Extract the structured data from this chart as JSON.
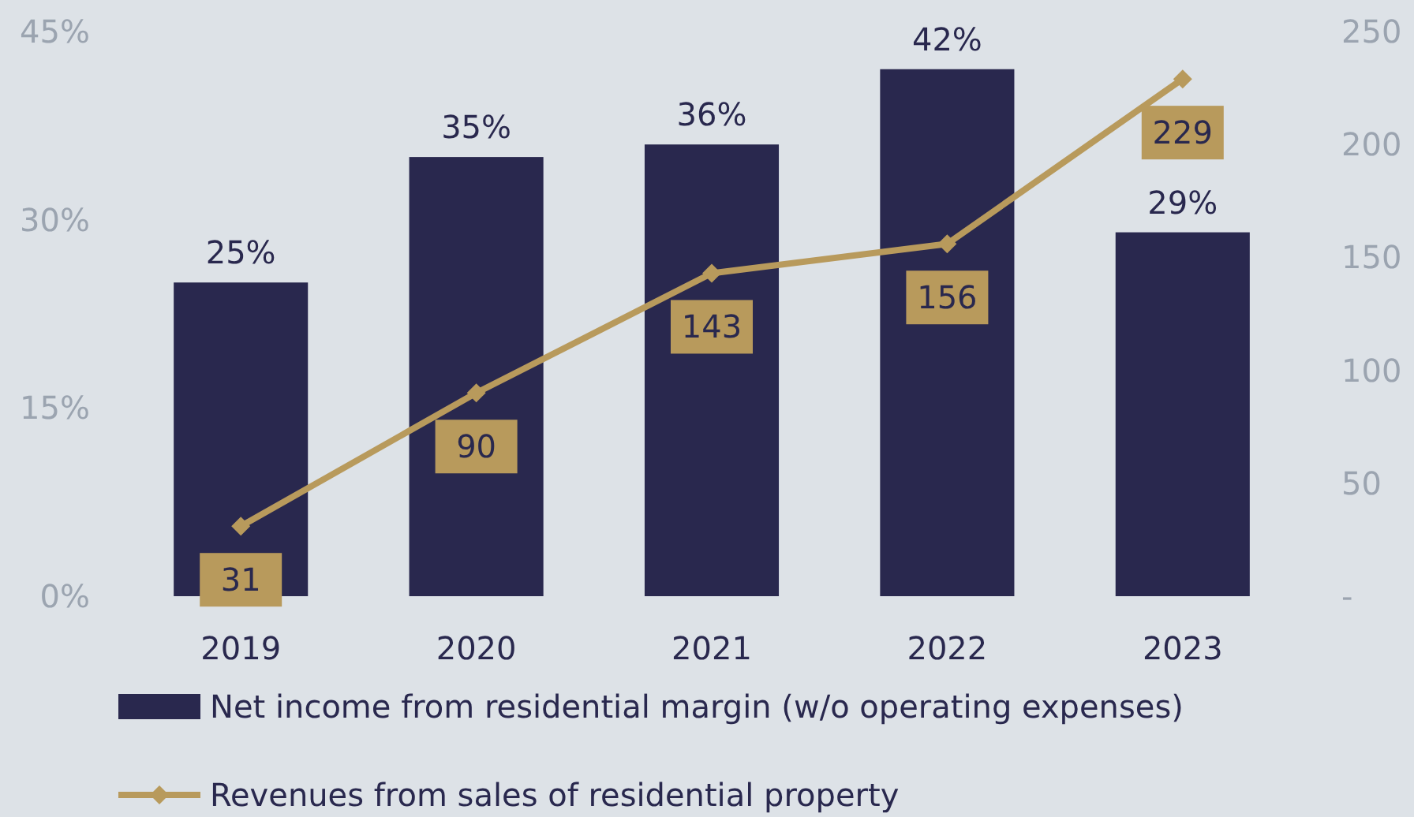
{
  "chart_data": {
    "type": "bar",
    "categories": [
      "2019",
      "2020",
      "2021",
      "2022",
      "2023"
    ],
    "series": [
      {
        "name": "Net income from residential margin (w/o operating expenses)",
        "color": "#29284e",
        "values": [
          25,
          35,
          36,
          42,
          29
        ],
        "value_labels": [
          "25%",
          "35%",
          "36%",
          "42%",
          "29%"
        ]
      },
      {
        "name": "Revenues from sales of residential property",
        "type": "line",
        "axis": "y2",
        "color": "#b89a5c",
        "values": [
          31,
          90,
          143,
          156,
          229
        ],
        "value_labels": [
          "31",
          "90",
          "143",
          "156",
          "229"
        ]
      }
    ],
    "ylim": [
      0,
      45
    ],
    "yticks": [
      {
        "value": 0,
        "label": "0%"
      },
      {
        "value": 15,
        "label": "15%"
      },
      {
        "value": 30,
        "label": "30%"
      },
      {
        "value": 45,
        "label": "45%"
      }
    ],
    "y2lim": [
      0,
      250
    ],
    "y2ticks": [
      {
        "value": 0,
        "label": "-"
      },
      50,
      100,
      150,
      200,
      250
    ],
    "grid": false,
    "legend": "bottom",
    "marker": "diamond",
    "line_style": "solid"
  }
}
